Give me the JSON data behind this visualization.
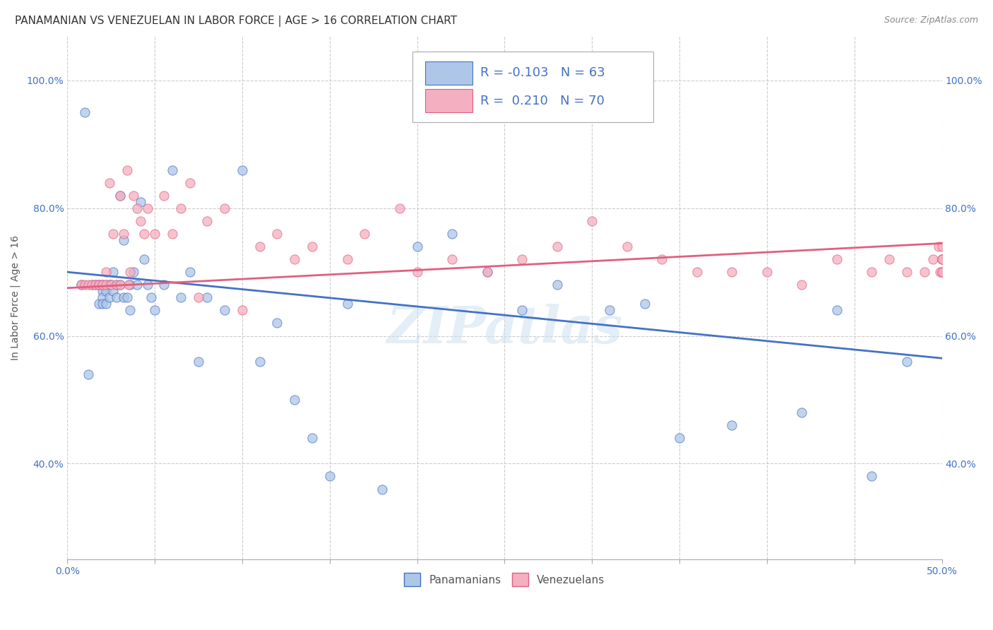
{
  "title": "PANAMANIAN VS VENEZUELAN IN LABOR FORCE | AGE > 16 CORRELATION CHART",
  "source": "Source: ZipAtlas.com",
  "ylabel": "In Labor Force | Age > 16",
  "xlim": [
    0.0,
    0.5
  ],
  "ylim": [
    0.25,
    1.07
  ],
  "x_ticks": [
    0.0,
    0.05,
    0.1,
    0.15,
    0.2,
    0.25,
    0.3,
    0.35,
    0.4,
    0.45,
    0.5
  ],
  "x_tick_labels": [
    "0.0%",
    "",
    "",
    "",
    "",
    "",
    "",
    "",
    "",
    "",
    "50.0%"
  ],
  "y_ticks": [
    0.4,
    0.6,
    0.8,
    1.0
  ],
  "y_tick_labels": [
    "40.0%",
    "60.0%",
    "80.0%",
    "100.0%"
  ],
  "legend_R_blue": "-0.103",
  "legend_N_blue": "63",
  "legend_R_pink": "0.210",
  "legend_N_pink": "70",
  "color_blue": "#aec6e8",
  "color_pink": "#f4afc0",
  "color_blue_line": "#4472c4",
  "color_pink_line": "#e06080",
  "color_blue_text": "#4472c4",
  "color_tick": "#4472c4",
  "watermark": "ZIPatlas",
  "blue_scatter_x": [
    0.008,
    0.01,
    0.012,
    0.014,
    0.016,
    0.018,
    0.018,
    0.02,
    0.02,
    0.02,
    0.02,
    0.022,
    0.022,
    0.022,
    0.024,
    0.024,
    0.025,
    0.026,
    0.026,
    0.028,
    0.028,
    0.03,
    0.03,
    0.032,
    0.032,
    0.034,
    0.036,
    0.036,
    0.038,
    0.04,
    0.042,
    0.044,
    0.046,
    0.048,
    0.05,
    0.055,
    0.06,
    0.065,
    0.07,
    0.075,
    0.08,
    0.09,
    0.1,
    0.11,
    0.12,
    0.13,
    0.14,
    0.15,
    0.16,
    0.18,
    0.2,
    0.22,
    0.24,
    0.26,
    0.28,
    0.31,
    0.33,
    0.35,
    0.38,
    0.42,
    0.44,
    0.46,
    0.48
  ],
  "blue_scatter_y": [
    0.68,
    0.95,
    0.54,
    0.68,
    0.68,
    0.68,
    0.65,
    0.68,
    0.67,
    0.66,
    0.65,
    0.68,
    0.67,
    0.65,
    0.68,
    0.66,
    0.68,
    0.7,
    0.67,
    0.68,
    0.66,
    0.82,
    0.68,
    0.75,
    0.66,
    0.66,
    0.68,
    0.64,
    0.7,
    0.68,
    0.81,
    0.72,
    0.68,
    0.66,
    0.64,
    0.68,
    0.86,
    0.66,
    0.7,
    0.56,
    0.66,
    0.64,
    0.86,
    0.56,
    0.62,
    0.5,
    0.44,
    0.38,
    0.65,
    0.36,
    0.74,
    0.76,
    0.7,
    0.64,
    0.68,
    0.64,
    0.65,
    0.44,
    0.46,
    0.48,
    0.64,
    0.38,
    0.56
  ],
  "pink_scatter_x": [
    0.008,
    0.01,
    0.012,
    0.014,
    0.016,
    0.018,
    0.018,
    0.02,
    0.02,
    0.022,
    0.022,
    0.024,
    0.025,
    0.026,
    0.028,
    0.03,
    0.03,
    0.032,
    0.034,
    0.035,
    0.036,
    0.038,
    0.04,
    0.042,
    0.044,
    0.046,
    0.05,
    0.055,
    0.06,
    0.065,
    0.07,
    0.075,
    0.08,
    0.09,
    0.1,
    0.11,
    0.12,
    0.13,
    0.14,
    0.16,
    0.17,
    0.19,
    0.2,
    0.22,
    0.24,
    0.26,
    0.28,
    0.3,
    0.32,
    0.34,
    0.36,
    0.38,
    0.4,
    0.42,
    0.44,
    0.46,
    0.47,
    0.48,
    0.49,
    0.495,
    0.498,
    0.499,
    0.5,
    0.5,
    0.5,
    0.5,
    0.5,
    0.5,
    0.5,
    0.5
  ],
  "pink_scatter_y": [
    0.68,
    0.68,
    0.68,
    0.68,
    0.68,
    0.68,
    0.68,
    0.68,
    0.68,
    0.7,
    0.68,
    0.84,
    0.68,
    0.76,
    0.68,
    0.82,
    0.68,
    0.76,
    0.86,
    0.68,
    0.7,
    0.82,
    0.8,
    0.78,
    0.76,
    0.8,
    0.76,
    0.82,
    0.76,
    0.8,
    0.84,
    0.66,
    0.78,
    0.8,
    0.64,
    0.74,
    0.76,
    0.72,
    0.74,
    0.72,
    0.76,
    0.8,
    0.7,
    0.72,
    0.7,
    0.72,
    0.74,
    0.78,
    0.74,
    0.72,
    0.7,
    0.7,
    0.7,
    0.68,
    0.72,
    0.7,
    0.72,
    0.7,
    0.7,
    0.72,
    0.74,
    0.7,
    0.72,
    0.7,
    0.7,
    0.72,
    0.7,
    0.72,
    0.72,
    0.74
  ],
  "blue_line_x": [
    0.0,
    0.5
  ],
  "blue_line_y": [
    0.7,
    0.565
  ],
  "pink_line_x": [
    0.0,
    0.5
  ],
  "pink_line_y": [
    0.675,
    0.745
  ],
  "background_color": "#ffffff",
  "grid_color": "#cccccc",
  "title_fontsize": 11,
  "axis_label_fontsize": 10,
  "tick_fontsize": 10,
  "legend_fontsize": 13
}
